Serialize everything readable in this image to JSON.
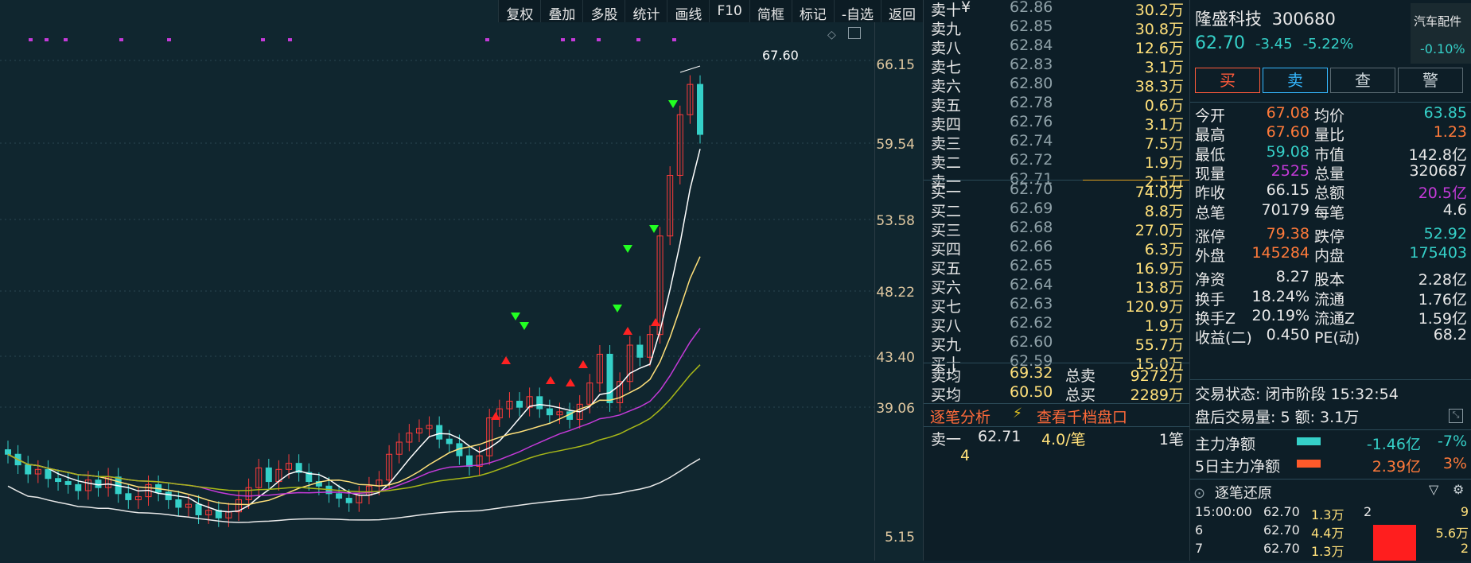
{
  "toolbar": [
    "复权",
    "叠加",
    "多股",
    "统计",
    "画线",
    "F10",
    "简框",
    "标记",
    "-自选",
    "返回"
  ],
  "y_axis": [
    "66.15",
    "59.54",
    "53.58",
    "48.22",
    "43.40",
    "39.06",
    "5.15"
  ],
  "high_label": "67.60",
  "colors": {
    "up": "#ff3b3b",
    "down": "#35d0c8",
    "yellow": "#ffe07a",
    "purple": "#c43ad8",
    "white": "#ffffff"
  },
  "chart_data": {
    "type": "candlestick",
    "title": "",
    "y_ticks": [
      66.15,
      59.54,
      53.58,
      48.22,
      43.4,
      39.06
    ],
    "close": [
      41.6,
      40.9,
      40.3,
      40.6,
      40.0,
      39.8,
      39.6,
      39.2,
      39.9,
      39.4,
      40.1,
      39.0,
      38.6,
      38.8,
      39.6,
      39.1,
      38.6,
      38.1,
      38.3,
      37.6,
      37.9,
      37.4,
      37.8,
      38.6,
      39.4,
      40.7,
      39.8,
      40.6,
      41.0,
      40.4,
      39.8,
      39.5,
      39.0,
      38.7,
      38.4,
      38.9,
      39.5,
      39.9,
      41.6,
      42.4,
      43.0,
      43.3,
      43.5,
      42.6,
      42.3,
      41.5,
      40.8,
      41.5,
      44.0,
      44.6,
      45.1,
      44.7,
      45.4,
      44.6,
      44.2,
      44.4,
      43.9,
      44.9,
      46.3,
      48.2,
      45.0,
      46.4,
      48.8,
      48.0,
      49.5,
      56.0,
      60.0,
      64.0,
      66.0,
      62.7
    ]
  },
  "book": {
    "ask": [
      {
        "label": "卖十",
        "mark": "¥",
        "price": "62.86",
        "vol": "30.2万"
      },
      {
        "label": "卖九",
        "price": "62.85",
        "vol": "30.8万"
      },
      {
        "label": "卖八",
        "price": "62.84",
        "vol": "12.6万"
      },
      {
        "label": "卖七",
        "price": "62.83",
        "vol": "3.1万"
      },
      {
        "label": "卖六",
        "price": "62.80",
        "vol": "38.3万"
      },
      {
        "label": "卖五",
        "price": "62.78",
        "vol": "0.6万"
      },
      {
        "label": "卖四",
        "price": "62.76",
        "vol": "3.1万"
      },
      {
        "label": "卖三",
        "price": "62.74",
        "vol": "7.5万"
      },
      {
        "label": "卖二",
        "price": "62.72",
        "vol": "1.9万"
      },
      {
        "label": "卖一",
        "price": "62.71",
        "vol": "2.5万"
      }
    ],
    "bid": [
      {
        "label": "买一",
        "price": "62.70",
        "vol": "74.0万"
      },
      {
        "label": "买二",
        "price": "62.69",
        "vol": "8.8万"
      },
      {
        "label": "买三",
        "price": "62.68",
        "vol": "27.0万"
      },
      {
        "label": "买四",
        "price": "62.66",
        "vol": "6.3万"
      },
      {
        "label": "买五",
        "price": "62.65",
        "vol": "16.9万"
      },
      {
        "label": "买六",
        "price": "62.64",
        "vol": "13.8万"
      },
      {
        "label": "买七",
        "price": "62.63",
        "vol": "120.9万"
      },
      {
        "label": "买八",
        "price": "62.62",
        "vol": "1.9万"
      },
      {
        "label": "买九",
        "price": "62.60",
        "vol": "55.7万"
      },
      {
        "label": "买十",
        "price": "62.59",
        "vol": "15.0万"
      }
    ],
    "avg_sell": {
      "label": "卖均",
      "price": "69.32",
      "tlabel": "总卖",
      "total": "9272万"
    },
    "avg_buy": {
      "label": "买均",
      "price": "60.50",
      "tlabel": "总买",
      "total": "2289万"
    },
    "analysis_label": "逐笔分析",
    "lightning": "⚡",
    "view_label": "查看千档盘口",
    "tick": {
      "label": "卖一",
      "price": "62.71",
      "per": "4.0/笔",
      "count": "1笔"
    },
    "tick_sub": "4"
  },
  "stock": {
    "name": "隆盛科技",
    "code": "300680",
    "sector": "汽车配件",
    "sector_pct": "-0.10%",
    "price": "62.70",
    "change": "-3.45",
    "pct": "-5.22%",
    "buttons": [
      "买",
      "卖",
      "查",
      "警"
    ]
  },
  "stats": [
    [
      "今开",
      "67.08",
      "均价",
      "63.85"
    ],
    [
      "最高",
      "67.60",
      "量比",
      "1.23"
    ],
    [
      "最低",
      "59.08",
      "市值",
      "142.8亿"
    ],
    [
      "现量",
      "2525",
      "总量",
      "320687"
    ],
    [
      "昨收",
      "66.15",
      "总额",
      "20.5亿"
    ],
    [
      "总笔",
      "70179",
      "每笔",
      "4.6"
    ],
    [
      "涨停",
      "79.38",
      "跌停",
      "52.92"
    ],
    [
      "外盘",
      "145284",
      "内盘",
      "175403"
    ],
    [
      "净资",
      "8.27",
      "股本",
      "2.28亿"
    ],
    [
      "换手",
      "18.24%",
      "流通",
      "1.76亿"
    ],
    [
      "换手Z",
      "20.19%",
      "流通Z",
      "1.59亿"
    ],
    [
      "收益(二)",
      "0.450",
      "PE(动)",
      "68.2"
    ]
  ],
  "status": {
    "trade": "交易状态: 闭市阶段 15:32:54",
    "after": "盘后交易量: 5  额: 3.1万"
  },
  "flow": [
    {
      "label": "主力净额",
      "value": "-1.46亿",
      "pct": "-7%"
    },
    {
      "label": "5日主力净额",
      "value": "2.39亿",
      "pct": "3%"
    }
  ],
  "ticks_title": "逐笔还原",
  "ticks": [
    {
      "time": "15:00:00",
      "price": "62.70",
      "vol": "1.3万",
      "n": "2",
      "r": "9"
    },
    {
      "time": "6",
      "price": "62.70",
      "vol": "4.4万",
      "n": "",
      "r": "5.6万"
    },
    {
      "time": "7",
      "price": "62.70",
      "vol": "1.3万",
      "n": "",
      "r": "2"
    }
  ]
}
